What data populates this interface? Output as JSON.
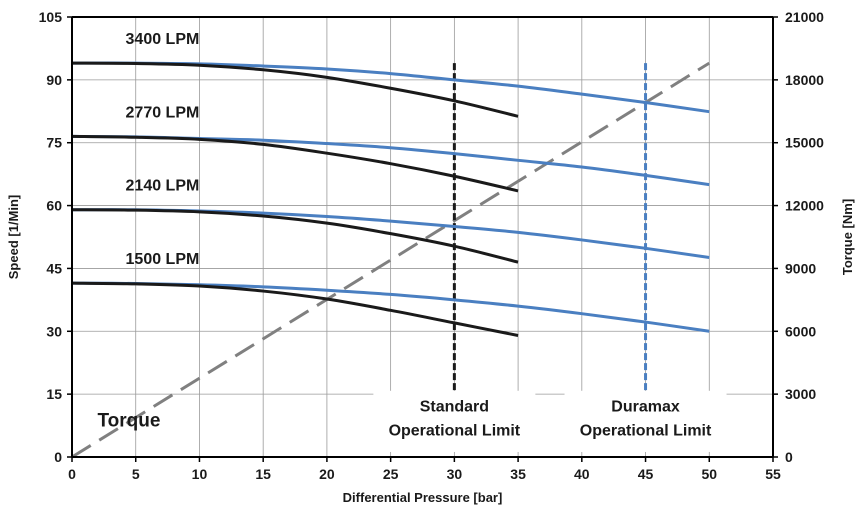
{
  "chart_data": {
    "type": "line",
    "xlabel": "Differential Pressure [bar]",
    "ylabel": "Speed [1/Min]",
    "y2label": "Torque [Nm]",
    "xlim": [
      0,
      55
    ],
    "ylim": [
      0,
      105
    ],
    "y2lim": [
      0,
      21000
    ],
    "x_ticks": [
      "0",
      "5",
      "10",
      "15",
      "20",
      "25",
      "30",
      "35",
      "40",
      "45",
      "50",
      "55"
    ],
    "y_ticks": [
      "0",
      "15",
      "30",
      "45",
      "60",
      "75",
      "90",
      "105"
    ],
    "y2_ticks": [
      "0",
      "3000",
      "6000",
      "9000",
      "12000",
      "15000",
      "18000",
      "21000"
    ],
    "grid": true,
    "colors": {
      "standard": "#1a1a1a",
      "duramax": "#4a7fc1",
      "torque": "#808080"
    },
    "series": [
      {
        "flow": "3400 LPM",
        "standard": {
          "x": [
            0,
            5,
            10,
            15,
            20,
            25,
            30,
            35
          ],
          "y": [
            94,
            93.9,
            93.5,
            92.4,
            90.6,
            88,
            85,
            81.3
          ]
        },
        "duramax": {
          "x": [
            0,
            5,
            10,
            15,
            20,
            25,
            30,
            35,
            40,
            45,
            50
          ],
          "y": [
            94,
            94,
            93.8,
            93.3,
            92.6,
            91.5,
            90,
            88.5,
            86.6,
            84.6,
            82.4
          ]
        }
      },
      {
        "flow": "2770 LPM",
        "standard": {
          "x": [
            0,
            5,
            10,
            15,
            20,
            25,
            30,
            35
          ],
          "y": [
            76.5,
            76.3,
            75.8,
            74.6,
            72.5,
            70,
            67,
            63.5
          ]
        },
        "duramax": {
          "x": [
            0,
            5,
            10,
            15,
            20,
            25,
            30,
            35,
            40,
            45,
            50
          ],
          "y": [
            76.5,
            76.4,
            76,
            75.6,
            74.8,
            73.8,
            72.4,
            70.8,
            69.2,
            67.2,
            65
          ]
        },
        "label_y": 81
      },
      {
        "flow": "2140 LPM",
        "standard": {
          "x": [
            0,
            5,
            10,
            15,
            20,
            25,
            30,
            35
          ],
          "y": [
            59,
            58.9,
            58.5,
            57.5,
            55.8,
            53.3,
            50.3,
            46.5
          ]
        },
        "duramax": {
          "x": [
            0,
            5,
            10,
            15,
            20,
            25,
            30,
            35,
            40,
            45,
            50
          ],
          "y": [
            59,
            59,
            58.7,
            58.2,
            57.4,
            56.3,
            55,
            53.6,
            51.8,
            49.8,
            47.6
          ]
        }
      },
      {
        "flow": "1500 LPM",
        "standard": {
          "x": [
            0,
            5,
            10,
            15,
            20,
            25,
            30,
            35
          ],
          "y": [
            41.5,
            41.3,
            40.8,
            39.6,
            37.7,
            35,
            32,
            29
          ]
        },
        "duramax": {
          "x": [
            0,
            5,
            10,
            15,
            20,
            25,
            30,
            35,
            40,
            45,
            50
          ],
          "y": [
            41.5,
            41.4,
            41.1,
            40.6,
            39.8,
            38.8,
            37.5,
            36,
            34.2,
            32.2,
            30
          ]
        }
      }
    ],
    "torque": {
      "name": "Torque",
      "x": [
        0,
        50
      ],
      "y2": [
        0,
        18800
      ]
    },
    "limits": [
      {
        "x": 30,
        "label_lines": [
          "Standard",
          "Operational Limit"
        ],
        "color": "#1a1a1a",
        "top": 94
      },
      {
        "x": 45,
        "label_lines": [
          "Duramax",
          "Operational Limit"
        ],
        "color": "#4a7fc1",
        "top": 94
      }
    ]
  }
}
